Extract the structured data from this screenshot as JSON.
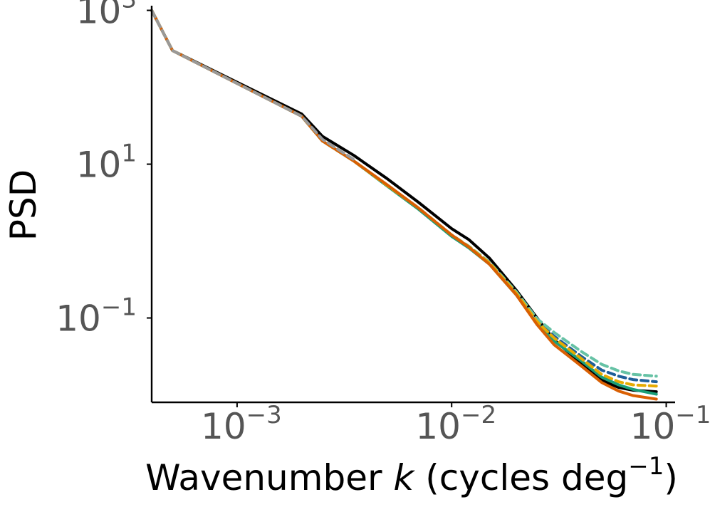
{
  "chart_data": {
    "type": "line",
    "title": "",
    "xlabel": {
      "main": "Wavenumber ",
      "var": "k",
      "paren": " (cycles deg",
      "sup": "−1",
      "close": ")"
    },
    "ylabel": "PSD",
    "xscale": "log",
    "yscale": "log",
    "xlim": [
      0.0004,
      0.11
    ],
    "ylim": [
      0.008,
      1150
    ],
    "grid": false,
    "legend": "none",
    "x_ticks": [
      {
        "value": 0.001,
        "base": "10",
        "exp": "−3"
      },
      {
        "value": 0.01,
        "base": "10",
        "exp": "−2"
      },
      {
        "value": 0.1,
        "base": "10",
        "exp": "−1"
      }
    ],
    "y_ticks": [
      {
        "value": 1000,
        "base": "10",
        "exp": "3"
      },
      {
        "value": 10,
        "base": "10",
        "exp": "1"
      },
      {
        "value": 0.1,
        "base": "10",
        "exp": "−1"
      }
    ],
    "series": [
      {
        "name": "black",
        "color": "#000000",
        "dash": "solid",
        "points": [
          [
            0.0004,
            1000
          ],
          [
            0.0005,
            300
          ],
          [
            0.002,
            45
          ],
          [
            0.0025,
            23
          ],
          [
            0.0035,
            13
          ],
          [
            0.005,
            6.5
          ],
          [
            0.007,
            3.2
          ],
          [
            0.01,
            1.45
          ],
          [
            0.012,
            1.05
          ],
          [
            0.015,
            0.6
          ],
          [
            0.02,
            0.23
          ],
          [
            0.025,
            0.1
          ],
          [
            0.03,
            0.052
          ],
          [
            0.04,
            0.026
          ],
          [
            0.05,
            0.0155
          ],
          [
            0.06,
            0.0125
          ],
          [
            0.07,
            0.0115
          ],
          [
            0.09,
            0.011
          ]
        ]
      },
      {
        "name": "green",
        "color": "#1a9e77",
        "dash": "solid",
        "points": [
          [
            0.0004,
            1000
          ],
          [
            0.0005,
            300
          ],
          [
            0.002,
            42
          ],
          [
            0.0025,
            20
          ],
          [
            0.0035,
            11
          ],
          [
            0.005,
            5.2
          ],
          [
            0.007,
            2.6
          ],
          [
            0.01,
            1.15
          ],
          [
            0.012,
            0.82
          ],
          [
            0.015,
            0.5
          ],
          [
            0.02,
            0.2
          ],
          [
            0.025,
            0.085
          ],
          [
            0.03,
            0.05
          ],
          [
            0.04,
            0.028
          ],
          [
            0.05,
            0.017
          ],
          [
            0.06,
            0.0135
          ],
          [
            0.07,
            0.0118
          ],
          [
            0.09,
            0.0102
          ]
        ]
      },
      {
        "name": "blue-dash",
        "color": "#1f5f99",
        "dash": "dash",
        "points": [
          [
            0.0004,
            1000
          ],
          [
            0.0005,
            300
          ],
          [
            0.002,
            42
          ],
          [
            0.0025,
            20
          ],
          [
            0.0035,
            11
          ],
          [
            0.005,
            5.3
          ],
          [
            0.007,
            2.7
          ],
          [
            0.01,
            1.2
          ],
          [
            0.012,
            0.85
          ],
          [
            0.015,
            0.52
          ],
          [
            0.02,
            0.21
          ],
          [
            0.025,
            0.092
          ],
          [
            0.03,
            0.058
          ],
          [
            0.04,
            0.032
          ],
          [
            0.05,
            0.021
          ],
          [
            0.06,
            0.0175
          ],
          [
            0.07,
            0.0158
          ],
          [
            0.09,
            0.0148
          ]
        ]
      },
      {
        "name": "light-green-dash",
        "color": "#66c2a5",
        "dash": "dash",
        "points": [
          [
            0.0004,
            1000
          ],
          [
            0.0005,
            300
          ],
          [
            0.002,
            42
          ],
          [
            0.0025,
            20
          ],
          [
            0.0035,
            11
          ],
          [
            0.005,
            5.3
          ],
          [
            0.007,
            2.7
          ],
          [
            0.01,
            1.2
          ],
          [
            0.012,
            0.86
          ],
          [
            0.015,
            0.53
          ],
          [
            0.02,
            0.22
          ],
          [
            0.025,
            0.098
          ],
          [
            0.03,
            0.065
          ],
          [
            0.04,
            0.037
          ],
          [
            0.05,
            0.025
          ],
          [
            0.06,
            0.0205
          ],
          [
            0.07,
            0.0185
          ],
          [
            0.09,
            0.0175
          ]
        ]
      },
      {
        "name": "gold-dash",
        "color": "#e6ab02",
        "dash": "dash",
        "points": [
          [
            0.0004,
            1000
          ],
          [
            0.0005,
            300
          ],
          [
            0.002,
            42
          ],
          [
            0.0025,
            20
          ],
          [
            0.0035,
            11
          ],
          [
            0.005,
            5.3
          ],
          [
            0.007,
            2.7
          ],
          [
            0.01,
            1.2
          ],
          [
            0.012,
            0.85
          ],
          [
            0.015,
            0.52
          ],
          [
            0.02,
            0.21
          ],
          [
            0.025,
            0.09
          ],
          [
            0.03,
            0.055
          ],
          [
            0.04,
            0.03
          ],
          [
            0.05,
            0.0185
          ],
          [
            0.06,
            0.0148
          ],
          [
            0.07,
            0.0135
          ],
          [
            0.09,
            0.013
          ]
        ]
      },
      {
        "name": "orange",
        "color": "#d95f02",
        "dash": "solid",
        "points": [
          [
            0.0004,
            1000
          ],
          [
            0.0005,
            300
          ],
          [
            0.002,
            42
          ],
          [
            0.0025,
            20
          ],
          [
            0.0035,
            11
          ],
          [
            0.005,
            5.4
          ],
          [
            0.007,
            2.7
          ],
          [
            0.01,
            1.2
          ],
          [
            0.012,
            0.84
          ],
          [
            0.015,
            0.5
          ],
          [
            0.02,
            0.2
          ],
          [
            0.025,
            0.082
          ],
          [
            0.03,
            0.045
          ],
          [
            0.04,
            0.024
          ],
          [
            0.05,
            0.0145
          ],
          [
            0.06,
            0.0112
          ],
          [
            0.07,
            0.0098
          ],
          [
            0.09,
            0.0088
          ]
        ]
      },
      {
        "name": "grey-dash",
        "color": "#999999",
        "dash": "dash",
        "points": [
          [
            0.0004,
            1000
          ],
          [
            0.0005,
            300
          ],
          [
            0.002,
            42
          ],
          [
            0.0025,
            21
          ],
          [
            0.0035,
            11.5
          ]
        ]
      }
    ]
  }
}
